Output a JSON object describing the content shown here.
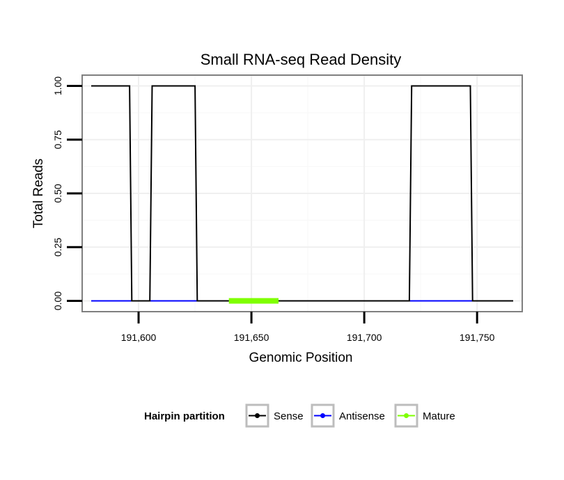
{
  "chart_data": {
    "type": "line",
    "title": "Small RNA-seq Read Density",
    "xlabel": "Genomic Position",
    "ylabel": "Total Reads",
    "xlim": [
      191575,
      191770
    ],
    "ylim": [
      -0.05,
      1.05
    ],
    "x_ticks": [
      191600,
      191650,
      191700,
      191750
    ],
    "x_tick_labels": [
      "191,600",
      "191,650",
      "191,700",
      "191,750"
    ],
    "y_ticks": [
      0,
      0.25,
      0.5,
      0.75,
      1.0
    ],
    "y_tick_labels": [
      "0.00",
      "0.25",
      "0.50",
      "0.75",
      "1.00"
    ],
    "grid": true,
    "legend": {
      "title": "Hairpin partition",
      "position": "bottom",
      "entries": [
        "Sense",
        "Antisense",
        "Mature"
      ]
    },
    "series": [
      {
        "name": "Antisense",
        "color": "#0000ff",
        "x": [
          191579,
          191766
        ],
        "y": [
          0,
          0
        ]
      },
      {
        "name": "Sense",
        "color": "#000000",
        "x": [
          191579,
          191596,
          191597,
          191605,
          191606,
          191625,
          191626,
          191720,
          191721,
          191747,
          191748,
          191766
        ],
        "y": [
          1,
          1,
          0,
          0,
          1,
          1,
          0,
          0,
          1,
          1,
          0,
          0
        ]
      },
      {
        "name": "Mature",
        "color": "#7fff00",
        "x": [
          191640,
          191662
        ],
        "y": [
          0,
          0
        ]
      }
    ]
  }
}
